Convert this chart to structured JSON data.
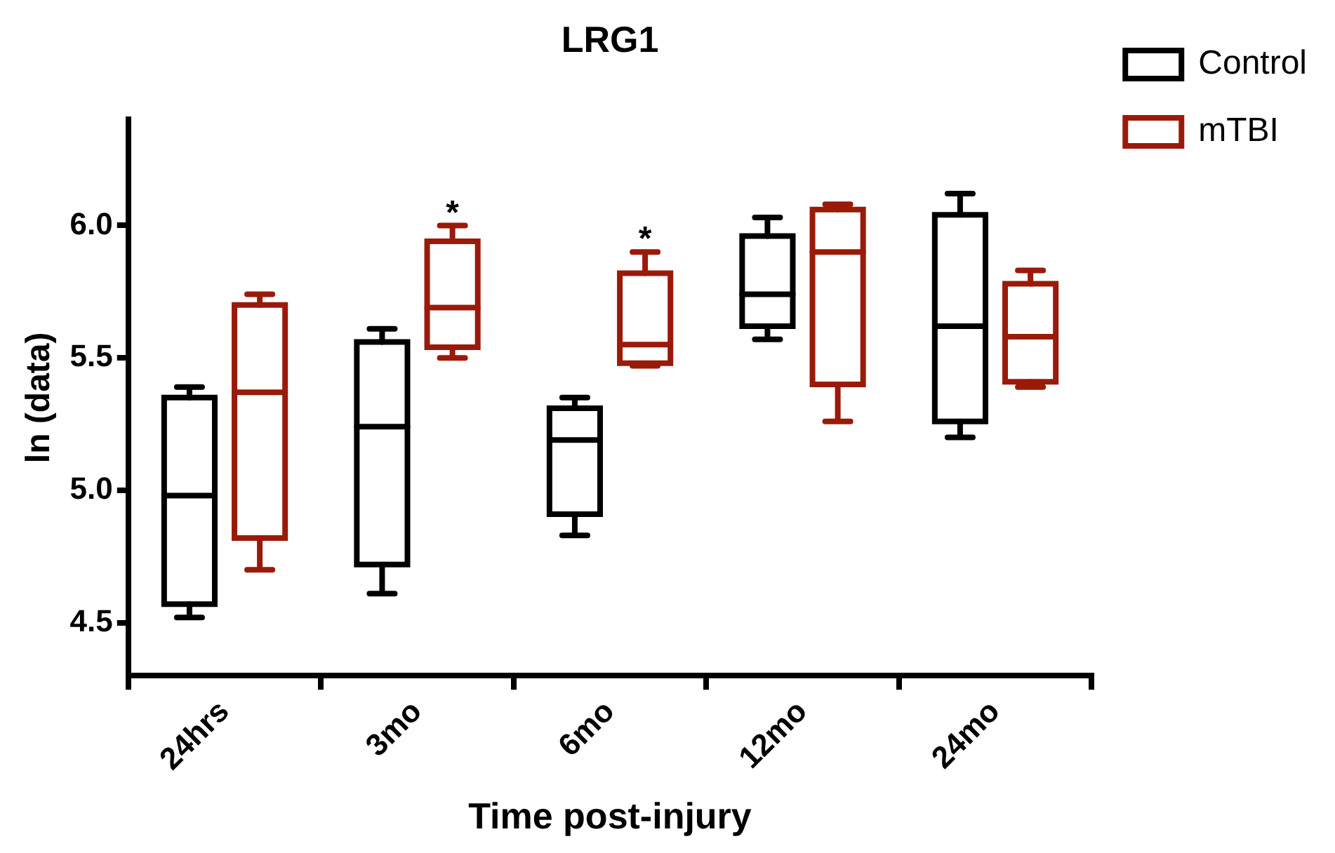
{
  "chart_data": {
    "type": "box",
    "title": "LRG1",
    "xlabel": "Time post-injury",
    "ylabel": "ln (data)",
    "categories": [
      "24hrs",
      "3mo",
      "6mo",
      "12mo",
      "24mo"
    ],
    "series": [
      {
        "name": "Control",
        "color": "#000000",
        "boxes": [
          {
            "low": 4.52,
            "q1": 4.57,
            "median": 4.98,
            "q3": 5.35,
            "high": 5.39
          },
          {
            "low": 4.61,
            "q1": 4.72,
            "median": 5.24,
            "q3": 5.56,
            "high": 5.61
          },
          {
            "low": 4.83,
            "q1": 4.91,
            "median": 5.19,
            "q3": 5.31,
            "high": 5.35
          },
          {
            "low": 5.57,
            "q1": 5.62,
            "median": 5.74,
            "q3": 5.96,
            "high": 6.03
          },
          {
            "low": 5.2,
            "q1": 5.26,
            "median": 5.62,
            "q3": 6.04,
            "high": 6.12
          }
        ]
      },
      {
        "name": "mTBI",
        "color": "#9a1a0a",
        "boxes": [
          {
            "low": 4.7,
            "q1": 4.82,
            "median": 5.37,
            "q3": 5.7,
            "high": 5.74
          },
          {
            "low": 5.5,
            "q1": 5.54,
            "median": 5.69,
            "q3": 5.94,
            "high": 6.0
          },
          {
            "low": 5.47,
            "q1": 5.48,
            "median": 5.55,
            "q3": 5.82,
            "high": 5.9
          },
          {
            "low": 5.26,
            "q1": 5.4,
            "median": 5.9,
            "q3": 6.06,
            "high": 6.08
          },
          {
            "low": 5.39,
            "q1": 5.41,
            "median": 5.58,
            "q3": 5.78,
            "high": 5.83
          }
        ]
      }
    ],
    "ylim": [
      4.3,
      6.4
    ],
    "yticks": [
      {
        "value": 4.5,
        "label": "4.5"
      },
      {
        "value": 5,
        "label": "5.0"
      },
      {
        "value": 5.5,
        "label": "5.5"
      },
      {
        "value": 6,
        "label": "6.0"
      }
    ],
    "annotations": [
      "*",
      "*"
    ],
    "grid": false,
    "legend": "top right"
  }
}
